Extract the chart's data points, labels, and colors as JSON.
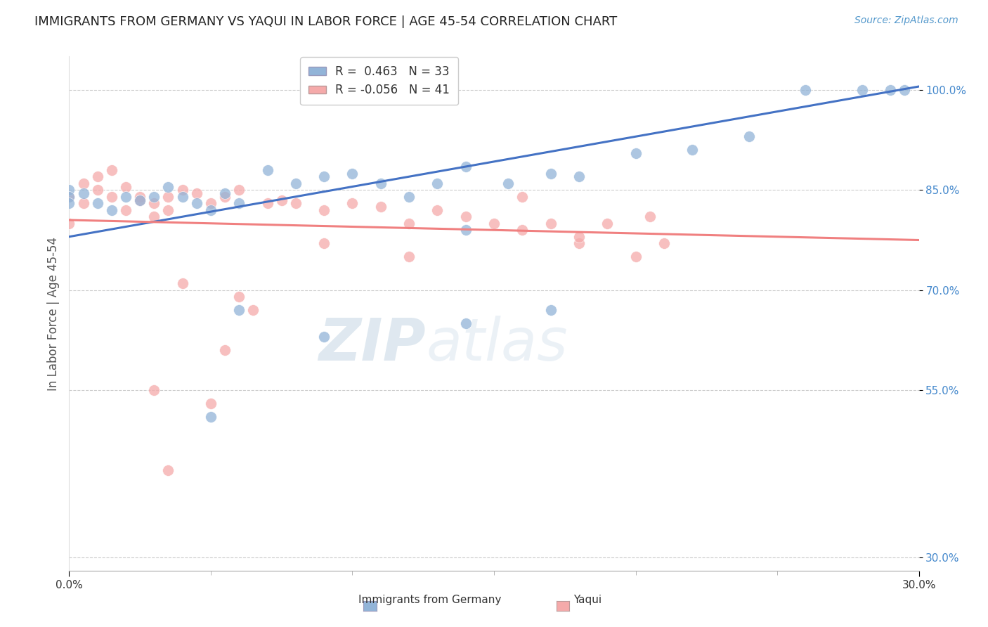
{
  "title": "IMMIGRANTS FROM GERMANY VS YAQUI IN LABOR FORCE | AGE 45-54 CORRELATION CHART",
  "source": "Source: ZipAtlas.com",
  "ylabel": "In Labor Force | Age 45-54",
  "legend_labels": [
    "Immigrants from Germany",
    "Yaqui"
  ],
  "blue_R": 0.463,
  "blue_N": 33,
  "pink_R": -0.056,
  "pink_N": 41,
  "blue_color": "#92B4D8",
  "pink_color": "#F5AAAA",
  "blue_line_color": "#4472C4",
  "pink_line_color": "#F08080",
  "blue_scatter": {
    "x": [
      0.0,
      0.0,
      0.0,
      0.5,
      1.0,
      1.5,
      2.0,
      2.5,
      3.0,
      3.5,
      4.0,
      4.5,
      5.0,
      5.5,
      6.0,
      7.0,
      8.0,
      9.0,
      10.0,
      11.0,
      12.0,
      13.0,
      14.0,
      15.5,
      17.0,
      18.0,
      20.0,
      22.0,
      24.0,
      26.0,
      28.0,
      29.0,
      29.5
    ],
    "y": [
      85.0,
      84.0,
      83.0,
      84.5,
      83.0,
      82.0,
      84.0,
      83.5,
      84.0,
      85.5,
      84.0,
      83.0,
      82.0,
      84.5,
      83.0,
      88.0,
      86.0,
      87.0,
      87.5,
      86.0,
      84.0,
      86.0,
      88.5,
      86.0,
      87.5,
      87.0,
      90.5,
      91.0,
      93.0,
      100.0,
      100.0,
      100.0,
      100.0
    ]
  },
  "pink_scatter": {
    "x": [
      0.0,
      0.0,
      0.5,
      0.5,
      1.0,
      1.0,
      1.5,
      1.5,
      2.0,
      2.0,
      2.5,
      2.5,
      3.0,
      3.0,
      3.5,
      3.5,
      4.0,
      4.5,
      5.0,
      5.5,
      6.0,
      7.0,
      7.5,
      8.0,
      9.0,
      10.0,
      11.0,
      12.0,
      13.0,
      14.0,
      15.0,
      16.0,
      17.0,
      18.0,
      20.0,
      21.0,
      18.0,
      20.5,
      16.0,
      9.0,
      19.0
    ],
    "y": [
      84.0,
      80.0,
      86.0,
      83.0,
      87.0,
      85.0,
      88.0,
      84.0,
      85.5,
      82.0,
      84.0,
      83.5,
      83.0,
      81.0,
      84.0,
      82.0,
      85.0,
      84.5,
      83.0,
      84.0,
      85.0,
      83.0,
      83.5,
      83.0,
      82.0,
      83.0,
      82.5,
      80.0,
      82.0,
      81.0,
      80.0,
      79.0,
      80.0,
      77.0,
      75.0,
      77.0,
      78.0,
      81.0,
      84.0,
      77.0,
      80.0
    ]
  },
  "blue_line": {
    "x0": 0.0,
    "y0": 78.0,
    "x1": 30.0,
    "y1": 100.5
  },
  "pink_line": {
    "x0": 0.0,
    "y0": 80.5,
    "x1": 30.0,
    "y1": 77.5
  },
  "yticks": [
    0.3,
    0.55,
    0.7,
    0.85,
    1.0
  ],
  "ytick_labels": [
    "30.0%",
    "55.0%",
    "70.0%",
    "85.0%",
    "100.0%"
  ],
  "xlim_pct": [
    0.0,
    30.0
  ],
  "ylim_pct": [
    28.0,
    105.0
  ],
  "watermark_zip": "ZIP",
  "watermark_atlas": "atlas",
  "background_color": "#FFFFFF",
  "grid_color": "#CCCCCC",
  "extra_blue": {
    "x": [
      14.0,
      6.0,
      9.0,
      5.0,
      14.0,
      17.0
    ],
    "y": [
      65.0,
      67.0,
      63.0,
      51.0,
      79.0,
      67.0
    ]
  },
  "extra_pink": {
    "x": [
      3.0,
      5.0,
      6.5,
      12.0,
      5.5,
      3.5,
      6.0,
      4.0
    ],
    "y": [
      55.0,
      53.0,
      67.0,
      75.0,
      61.0,
      43.0,
      69.0,
      71.0
    ]
  }
}
